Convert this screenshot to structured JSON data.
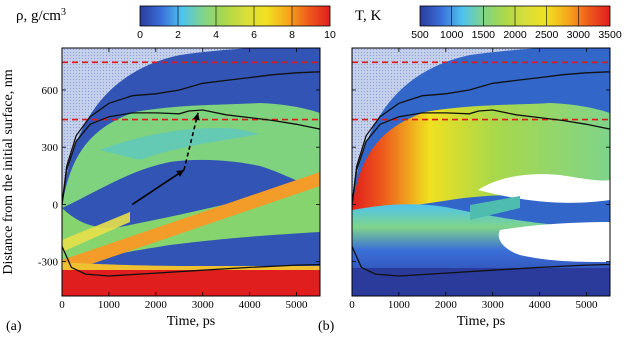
{
  "chart_data": [
    {
      "type": "heatmap",
      "panel_label": "(a)",
      "xlabel": "Time, ps",
      "ylabel": "Distance from the initial surface, nm",
      "xlim": [
        0,
        5500
      ],
      "ylim": [
        -480,
        820
      ],
      "x_ticks": [
        0,
        1000,
        2000,
        3000,
        4000,
        5000
      ],
      "y_ticks": [
        -300,
        0,
        300,
        600
      ],
      "colorbar": {
        "title_main": "ρ, g/cm",
        "title_sup": "3",
        "min": 0,
        "max": 10,
        "ticks": [
          0,
          2,
          4,
          6,
          8,
          10
        ],
        "colors": [
          "#2a3b9c",
          "#3a6fd8",
          "#4fc3ee",
          "#7fd48a",
          "#a9d84a",
          "#d8de3a",
          "#f0e020",
          "#f6a81c",
          "#ee5a1c",
          "#e01e1e"
        ]
      },
      "reference_lines_y": [
        745,
        445
      ],
      "curves": {
        "upper": [
          [
            0,
            0
          ],
          [
            100,
            200
          ],
          [
            300,
            360
          ],
          [
            600,
            460
          ],
          [
            1000,
            530
          ],
          [
            1500,
            570
          ],
          [
            2000,
            580
          ],
          [
            2500,
            600
          ],
          [
            3000,
            635
          ],
          [
            3500,
            650
          ],
          [
            4000,
            665
          ],
          [
            4500,
            680
          ],
          [
            5000,
            690
          ],
          [
            5500,
            695
          ]
        ],
        "lower": [
          [
            0,
            0
          ],
          [
            100,
            180
          ],
          [
            300,
            330
          ],
          [
            600,
            420
          ],
          [
            1000,
            460
          ],
          [
            1500,
            480
          ],
          [
            2000,
            480
          ],
          [
            2500,
            475
          ],
          [
            2700,
            490
          ],
          [
            3000,
            495
          ],
          [
            3500,
            470
          ],
          [
            4000,
            455
          ],
          [
            4500,
            440
          ],
          [
            5000,
            420
          ],
          [
            5500,
            395
          ]
        ],
        "bottom": [
          [
            0,
            -220
          ],
          [
            200,
            -330
          ],
          [
            500,
            -365
          ],
          [
            1000,
            -375
          ],
          [
            2000,
            -360
          ],
          [
            3000,
            -345
          ],
          [
            4000,
            -330
          ],
          [
            5000,
            -318
          ],
          [
            5500,
            -315
          ]
        ]
      },
      "arrows": [
        {
          "from": [
            1500,
            0
          ],
          "to": [
            2600,
            180
          ],
          "style": "solid"
        },
        {
          "from": [
            2600,
            180
          ],
          "to": [
            2900,
            480
          ],
          "style": "dashed"
        }
      ]
    },
    {
      "type": "heatmap",
      "panel_label": "(b)",
      "xlabel": "Time, ps",
      "xlim": [
        0,
        5500
      ],
      "ylim": [
        -480,
        820
      ],
      "x_ticks": [
        0,
        1000,
        2000,
        3000,
        4000,
        5000
      ],
      "colorbar": {
        "title_main": "T, K",
        "min": 500,
        "max": 3500,
        "ticks": [
          500,
          1000,
          1500,
          2000,
          2500,
          3000,
          3500
        ],
        "colors": [
          "#2a3b9c",
          "#3a6fd8",
          "#4fc3ee",
          "#7fd48a",
          "#a9d84a",
          "#d8de3a",
          "#f0e020",
          "#f6a81c",
          "#ee5a1c",
          "#e01e1e"
        ]
      },
      "reference_lines_y": [
        745,
        445
      ],
      "curves": {
        "upper": [
          [
            0,
            0
          ],
          [
            100,
            200
          ],
          [
            300,
            360
          ],
          [
            600,
            460
          ],
          [
            1000,
            530
          ],
          [
            1500,
            570
          ],
          [
            2000,
            580
          ],
          [
            2500,
            600
          ],
          [
            3000,
            635
          ],
          [
            3500,
            650
          ],
          [
            4000,
            665
          ],
          [
            4500,
            680
          ],
          [
            5000,
            690
          ],
          [
            5500,
            695
          ]
        ],
        "lower": [
          [
            0,
            0
          ],
          [
            100,
            180
          ],
          [
            300,
            330
          ],
          [
            600,
            420
          ],
          [
            1000,
            460
          ],
          [
            1500,
            480
          ],
          [
            2000,
            480
          ],
          [
            2500,
            475
          ],
          [
            2700,
            490
          ],
          [
            3000,
            495
          ],
          [
            3500,
            470
          ],
          [
            4000,
            455
          ],
          [
            4500,
            440
          ],
          [
            5000,
            420
          ],
          [
            5500,
            395
          ]
        ],
        "bottom": [
          [
            0,
            -220
          ],
          [
            200,
            -330
          ],
          [
            500,
            -365
          ],
          [
            1000,
            -375
          ],
          [
            2000,
            -360
          ],
          [
            3000,
            -345
          ],
          [
            4000,
            -330
          ],
          [
            5000,
            -318
          ],
          [
            5500,
            -315
          ]
        ]
      }
    }
  ]
}
